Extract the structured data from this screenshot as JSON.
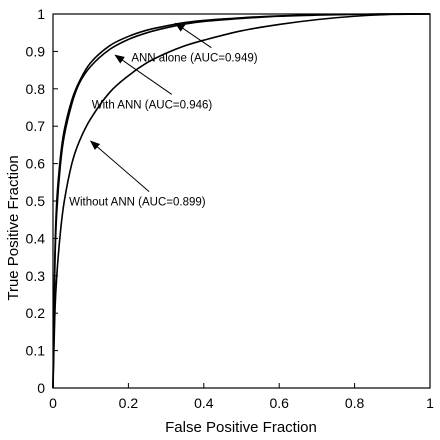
{
  "chart_data": {
    "type": "line",
    "title": "",
    "xlabel": "False Positive Fraction",
    "ylabel": "True Positive Fraction",
    "xlim": [
      0,
      1
    ],
    "ylim": [
      0,
      1
    ],
    "x_ticks": [
      "0",
      "0.2",
      "0.4",
      "0.6",
      "0.8",
      "1"
    ],
    "y_ticks": [
      "0",
      "0.1",
      "0.2",
      "0.3",
      "0.4",
      "0.5",
      "0.6",
      "0.7",
      "0.8",
      "0.9",
      "1"
    ],
    "grid": false,
    "legend": "none",
    "line_color": "#000000",
    "series": [
      {
        "auc": 0.949,
        "x": [
          0,
          0.005,
          0.01,
          0.02,
          0.03,
          0.05,
          0.07,
          0.1,
          0.15,
          0.2,
          0.25,
          0.3,
          0.35,
          0.4,
          0.5,
          0.6,
          0.7,
          0.8,
          0.9,
          1.0
        ],
        "y": [
          0,
          0.35,
          0.5,
          0.62,
          0.69,
          0.77,
          0.82,
          0.87,
          0.915,
          0.94,
          0.957,
          0.968,
          0.977,
          0.983,
          0.99,
          0.995,
          0.998,
          0.999,
          1.0,
          1.0
        ]
      },
      {
        "auc": 0.946,
        "x": [
          0,
          0.005,
          0.01,
          0.02,
          0.03,
          0.05,
          0.07,
          0.1,
          0.15,
          0.2,
          0.25,
          0.3,
          0.35,
          0.4,
          0.5,
          0.6,
          0.7,
          0.8,
          0.9,
          1.0
        ],
        "y": [
          0,
          0.33,
          0.47,
          0.6,
          0.675,
          0.76,
          0.815,
          0.86,
          0.905,
          0.932,
          0.95,
          0.963,
          0.973,
          0.98,
          0.988,
          0.994,
          0.997,
          0.999,
          1.0,
          1.0
        ]
      },
      {
        "auc": 0.899,
        "x": [
          0,
          0.005,
          0.01,
          0.02,
          0.03,
          0.05,
          0.07,
          0.1,
          0.15,
          0.2,
          0.25,
          0.3,
          0.35,
          0.4,
          0.5,
          0.6,
          0.7,
          0.8,
          0.9,
          1.0
        ],
        "y": [
          0,
          0.2,
          0.3,
          0.42,
          0.5,
          0.6,
          0.66,
          0.72,
          0.79,
          0.835,
          0.87,
          0.895,
          0.915,
          0.93,
          0.955,
          0.972,
          0.985,
          0.994,
          0.999,
          1.0
        ]
      }
    ],
    "annotations": [
      {
        "text": "ANN alone (AUC=0.949)",
        "point": [
          0.33,
          0.985
        ],
        "arrow_to": [
          0.325,
          0.975
        ],
        "arrow_from": [
          0.42,
          0.91
        ]
      },
      {
        "text": "With ANN (AUC=0.946)",
        "point": [
          0.25,
          0.74
        ],
        "arrow_to": [
          0.165,
          0.89
        ],
        "arrow_from": [
          0.315,
          0.785
        ]
      },
      {
        "text": "Without ANN (AUC=0.899)",
        "point": [
          0.12,
          0.51
        ],
        "arrow_to": [
          0.1,
          0.66
        ],
        "arrow_from": [
          0.255,
          0.525
        ]
      }
    ]
  }
}
